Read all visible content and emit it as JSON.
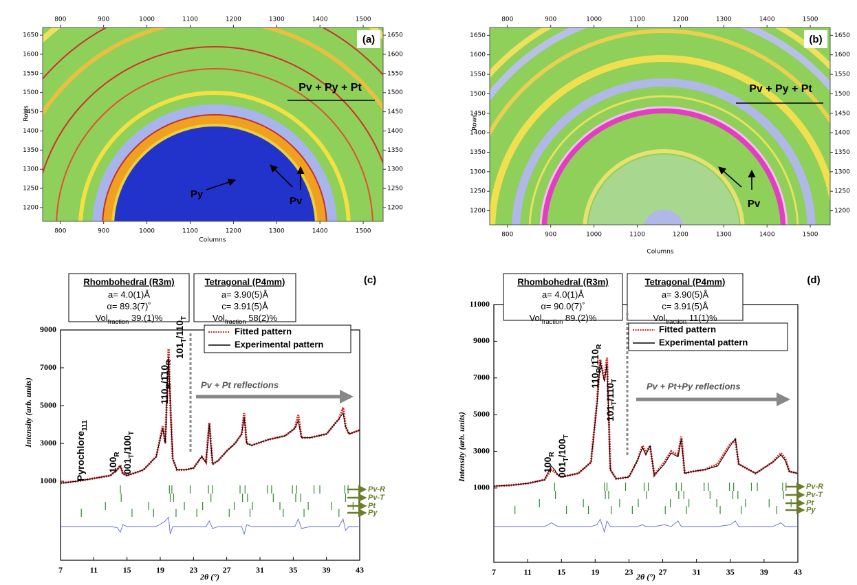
{
  "chart_data": [
    {
      "type": "image",
      "panel_label": "(a)",
      "xlabel": "Columns",
      "ylabel": "Rows",
      "xlim": [
        759,
        1546
      ],
      "ylim": [
        1164,
        1670
      ],
      "xticks": [
        800,
        900,
        1000,
        1100,
        1200,
        1300,
        1400,
        1500
      ],
      "yticks": [
        1200,
        1250,
        1300,
        1350,
        1400,
        1450,
        1500,
        1550,
        1600,
        1650
      ],
      "annotations": [
        "Pv + Py + Pt",
        "Py",
        "Pv"
      ]
    },
    {
      "type": "image",
      "panel_label": "(b)",
      "xlabel": "Columns",
      "ylabel": "Rows",
      "xlim": [
        759,
        1546
      ],
      "ylim": [
        1164,
        1670
      ],
      "xticks": [
        800,
        900,
        1000,
        1100,
        1200,
        1300,
        1400,
        1500
      ],
      "yticks": [
        1200,
        1250,
        1300,
        1350,
        1400,
        1450,
        1500,
        1550,
        1600,
        1650
      ],
      "annotations": [
        "Pv + Py + Pt",
        "Pv"
      ]
    },
    {
      "type": "line",
      "panel_label": "(c)",
      "xlabel": "2θ (°)",
      "ylabel": "Intensity (arb. units)",
      "xlim": [
        7,
        43
      ],
      "ylim": [
        -3180,
        9000
      ],
      "xticks": [
        7,
        11,
        15,
        19,
        23,
        27,
        31,
        35,
        39,
        43
      ],
      "yticks": [
        1000,
        3000,
        5000,
        7000,
        9000
      ],
      "x": [
        7,
        9,
        11,
        13,
        13.8,
        14.2,
        14.5,
        15,
        17,
        18.5,
        19.3,
        19.6,
        20,
        20.2,
        20.5,
        21,
        22,
        23,
        24,
        24.5,
        24.9,
        25.3,
        26,
        27,
        28,
        28.8,
        29.1,
        29.4,
        30,
        32,
        34,
        35.2,
        35.6,
        36,
        37,
        39,
        40.5,
        41,
        41.3,
        41.7,
        43
      ],
      "series": [
        {
          "name": "Fitted pattern",
          "color": "#e02020",
          "values": [
            900,
            1000,
            1150,
            1300,
            1600,
            1850,
            1400,
            1300,
            1600,
            2300,
            3900,
            3000,
            8000,
            5200,
            2200,
            1600,
            1600,
            1700,
            2300,
            2000,
            4100,
            1900,
            2100,
            2600,
            3000,
            3500,
            4600,
            3000,
            2900,
            3200,
            3400,
            3800,
            4500,
            3300,
            3300,
            3500,
            4300,
            4900,
            3900,
            3500,
            3700
          ]
        },
        {
          "name": "Experimental pattern",
          "color": "#000000",
          "values": [
            900,
            1000,
            1150,
            1300,
            1600,
            1800,
            1400,
            1300,
            1600,
            2300,
            3800,
            3000,
            7600,
            5200,
            2200,
            1600,
            1600,
            1700,
            2300,
            2000,
            4000,
            1900,
            2100,
            2600,
            3000,
            3500,
            4400,
            3000,
            2900,
            3200,
            3400,
            3800,
            4200,
            3300,
            3300,
            3500,
            4300,
            4600,
            3900,
            3500,
            3700
          ]
        },
        {
          "color": "#5a6ae8",
          "values": [
            -1400,
            -1400,
            -1400,
            -1400,
            -1450,
            -1700,
            -1300,
            -1400,
            -1400,
            -1400,
            -1200,
            -1100,
            -900,
            -1800,
            -1400,
            -1400,
            -1400,
            -1400,
            -1400,
            -1400,
            -1100,
            -1500,
            -1400,
            -1400,
            -1400,
            -1400,
            -1800,
            -1300,
            -1400,
            -1400,
            -1400,
            -1400,
            -1000,
            -1500,
            -1400,
            -1400,
            -1400,
            -1000,
            -1600,
            -1400,
            -1400
          ]
        }
      ],
      "reflections": [
        {
          "name": "Pv-R",
          "color": "#2e8b2e",
          "positions": [
            14.2,
            20.1,
            20.4,
            22.6,
            24.8,
            25.3,
            28.6,
            29.2,
            31.9,
            32.4,
            34.9,
            35.4,
            37.5,
            38.2,
            41.2,
            41.6
          ]
        },
        {
          "name": "Pv-T",
          "color": "#2e8b2e",
          "positions": [
            14.3,
            20.2,
            20.6,
            25.1,
            28.9,
            29.5,
            32.6,
            35.3,
            35.9,
            41.3
          ]
        },
        {
          "name": "Pt",
          "color": "#2e8b2e",
          "positions": [
            12.4,
            17.6,
            21.9,
            24.1,
            27.9,
            30.1,
            33.4,
            36.8,
            39.6,
            42.2
          ]
        },
        {
          "name": "Py",
          "color": "#2e8b2e",
          "positions": [
            9.5,
            15.6,
            18.2,
            20.9,
            23.4,
            27.3,
            29.8,
            33.8,
            36.3,
            40.5
          ]
        }
      ],
      "peak_labels": [
        [
          "Pyrochlore",
          "111"
        ],
        [
          "100",
          "R"
        ],
        [
          "001",
          "T",
          "/100",
          "T"
        ],
        [
          "110",
          "R",
          "/1̄10",
          "R"
        ],
        [
          "101",
          "T",
          "/110",
          "T"
        ]
      ],
      "phases": [
        {
          "title": "Rhombohedral (R3m)",
          "lines": [
            [
              "a= 4.0(1)Å"
            ],
            [
              "α= 89.3(7)˚"
            ],
            [
              "Vol",
              "fraction",
              " 39.(1)%"
            ]
          ]
        },
        {
          "title": "Tetragonal (P4mm)",
          "lines": [
            [
              "a= 3.90(5)Å"
            ],
            [
              "c= 3.91(5)Å"
            ],
            [
              "Vol",
              "fraction",
              " 58(2)%"
            ]
          ]
        }
      ],
      "arrow_text": "Pv + Pt reflections"
    },
    {
      "type": "line",
      "panel_label": "(d)",
      "xlabel": "2θ (°)",
      "ylabel": "Intensity (arb. units)",
      "xlim": [
        7,
        43
      ],
      "ylim": [
        -3050,
        11000
      ],
      "xticks": [
        7,
        11,
        15,
        19,
        23,
        27,
        31,
        35,
        39,
        43
      ],
      "yticks": [
        1000,
        3000,
        5000,
        7000,
        9000,
        11000
      ],
      "x": [
        7,
        9,
        11,
        13,
        13.8,
        14.2,
        14.6,
        15,
        17,
        18.5,
        19.2,
        19.6,
        20.1,
        20.4,
        20.8,
        21.5,
        23,
        24,
        24.6,
        25,
        25.5,
        26,
        27.2,
        28,
        28.8,
        29.2,
        29.6,
        30.5,
        32,
        33.5,
        35,
        35.6,
        36,
        38,
        40,
        41,
        41.5,
        42,
        43
      ],
      "series": [
        {
          "name": "Fitted pattern",
          "color": "#e02020",
          "values": [
            1100,
            1150,
            1250,
            1450,
            2000,
            1900,
            1700,
            1600,
            1800,
            2400,
            5600,
            8000,
            6900,
            8100,
            2000,
            1500,
            1600,
            2500,
            3300,
            2900,
            3300,
            1700,
            2400,
            3000,
            2800,
            3800,
            1800,
            1900,
            2000,
            2300,
            3400,
            3600,
            2300,
            1800,
            2400,
            2900,
            2600,
            1900,
            1800
          ]
        },
        {
          "name": "Experimental pattern",
          "color": "#000000",
          "values": [
            1100,
            1150,
            1250,
            1450,
            2200,
            2000,
            1700,
            1600,
            1800,
            2400,
            5500,
            7900,
            6800,
            7800,
            2000,
            1500,
            1600,
            2500,
            3200,
            2800,
            3300,
            1700,
            2300,
            2900,
            2700,
            3700,
            1800,
            1900,
            2000,
            2200,
            3300,
            3700,
            2300,
            1800,
            2400,
            2800,
            2500,
            1900,
            1800
          ]
        },
        {
          "color": "#5a6ae8",
          "values": [
            -1100,
            -1100,
            -1100,
            -1100,
            -900,
            -1000,
            -1100,
            -1100,
            -1100,
            -1100,
            -1000,
            -700,
            -1400,
            -800,
            -1100,
            -1100,
            -1100,
            -1100,
            -1000,
            -1100,
            -1100,
            -1100,
            -1000,
            -1100,
            -800,
            -1100,
            -1100,
            -1100,
            -1100,
            -1100,
            -1000,
            -800,
            -1100,
            -1100,
            -1100,
            -900,
            -1100,
            -1100,
            -1100
          ]
        }
      ],
      "reflections": [
        {
          "name": "Pv-R",
          "color": "#2e8b2e",
          "positions": [
            14.2,
            20.1,
            20.4,
            22.6,
            24.8,
            25.3,
            28.6,
            29.2,
            31.9,
            32.4,
            34.9,
            35.4,
            37.5,
            38.2,
            41.2,
            41.6
          ]
        },
        {
          "name": "Pv-T",
          "color": "#2e8b2e",
          "positions": [
            14.3,
            20.2,
            20.6,
            25.1,
            28.9,
            29.5,
            32.6,
            35.3,
            35.9,
            41.3
          ]
        },
        {
          "name": "Pt",
          "color": "#2e8b2e",
          "positions": [
            12.4,
            17.6,
            21.9,
            24.1,
            27.9,
            30.1,
            33.4,
            36.8,
            39.6,
            42.2
          ]
        },
        {
          "name": "Py",
          "color": "#2e8b2e",
          "positions": [
            9.5,
            15.6,
            18.2,
            20.9,
            23.4,
            27.3,
            29.8,
            33.8,
            36.3,
            40.5
          ]
        }
      ],
      "peak_labels": [
        [
          "100",
          "R"
        ],
        [
          "001",
          "T",
          "/100",
          "T"
        ],
        [
          "110",
          "R",
          "/1̄10",
          "R"
        ],
        [
          "101",
          "T",
          "/110",
          "T"
        ]
      ],
      "phases": [
        {
          "title": "Rhombohedral (R3m)",
          "lines": [
            [
              "a= 4.0(1)Å"
            ],
            [
              "α= 90.0(7)˚"
            ],
            [
              "Vol",
              "fraction",
              " 89.(2)%"
            ]
          ]
        },
        {
          "title": "Tetragonal (P4mm)",
          "lines": [
            [
              "a= 3.90(5)Å"
            ],
            [
              "c= 3.91(5)Å"
            ],
            [
              "Vol",
              "fraction",
              " 11(1)%"
            ]
          ]
        }
      ],
      "arrow_text": "Pv + Pt+Py reflections"
    }
  ]
}
